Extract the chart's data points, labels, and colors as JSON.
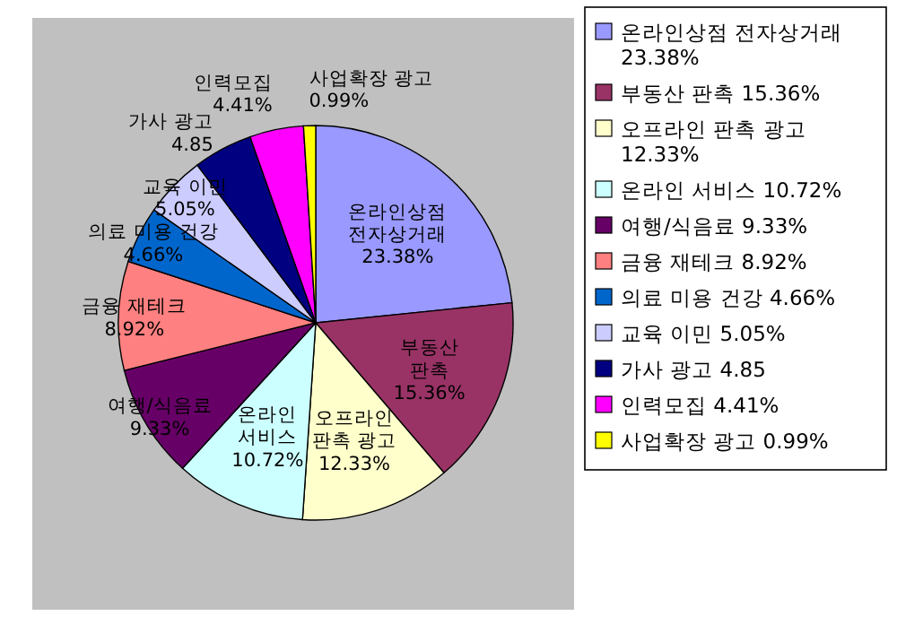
{
  "chart_data": {
    "type": "pie",
    "categories": [
      "온라인상점 전자상거래",
      "부동산 판촉",
      "오프라인 판촉 광고",
      "온라인 서비스",
      "여행/식음료",
      "금융 재테크",
      "의료 미용 건강",
      "교육 이민",
      "가사 광고",
      "인력모집",
      "사업확장 광고"
    ],
    "values": [
      23.38,
      15.36,
      12.33,
      10.72,
      9.33,
      8.92,
      4.66,
      5.05,
      4.85,
      4.41,
      0.99
    ],
    "value_labels": [
      "23.38%",
      "15.36%",
      "12.33%",
      "10.72%",
      "9.33%",
      "8.92%",
      "4.66%",
      "5.05%",
      "4.85",
      "4.41%",
      "0.99%"
    ],
    "colors": [
      "#9999ff",
      "#993366",
      "#ffffcc",
      "#ccffff",
      "#660066",
      "#ff8080",
      "#0066cc",
      "#ccccff",
      "#000080",
      "#ff00ff",
      "#ffff00"
    ],
    "data_labels": true,
    "legend": "right"
  }
}
